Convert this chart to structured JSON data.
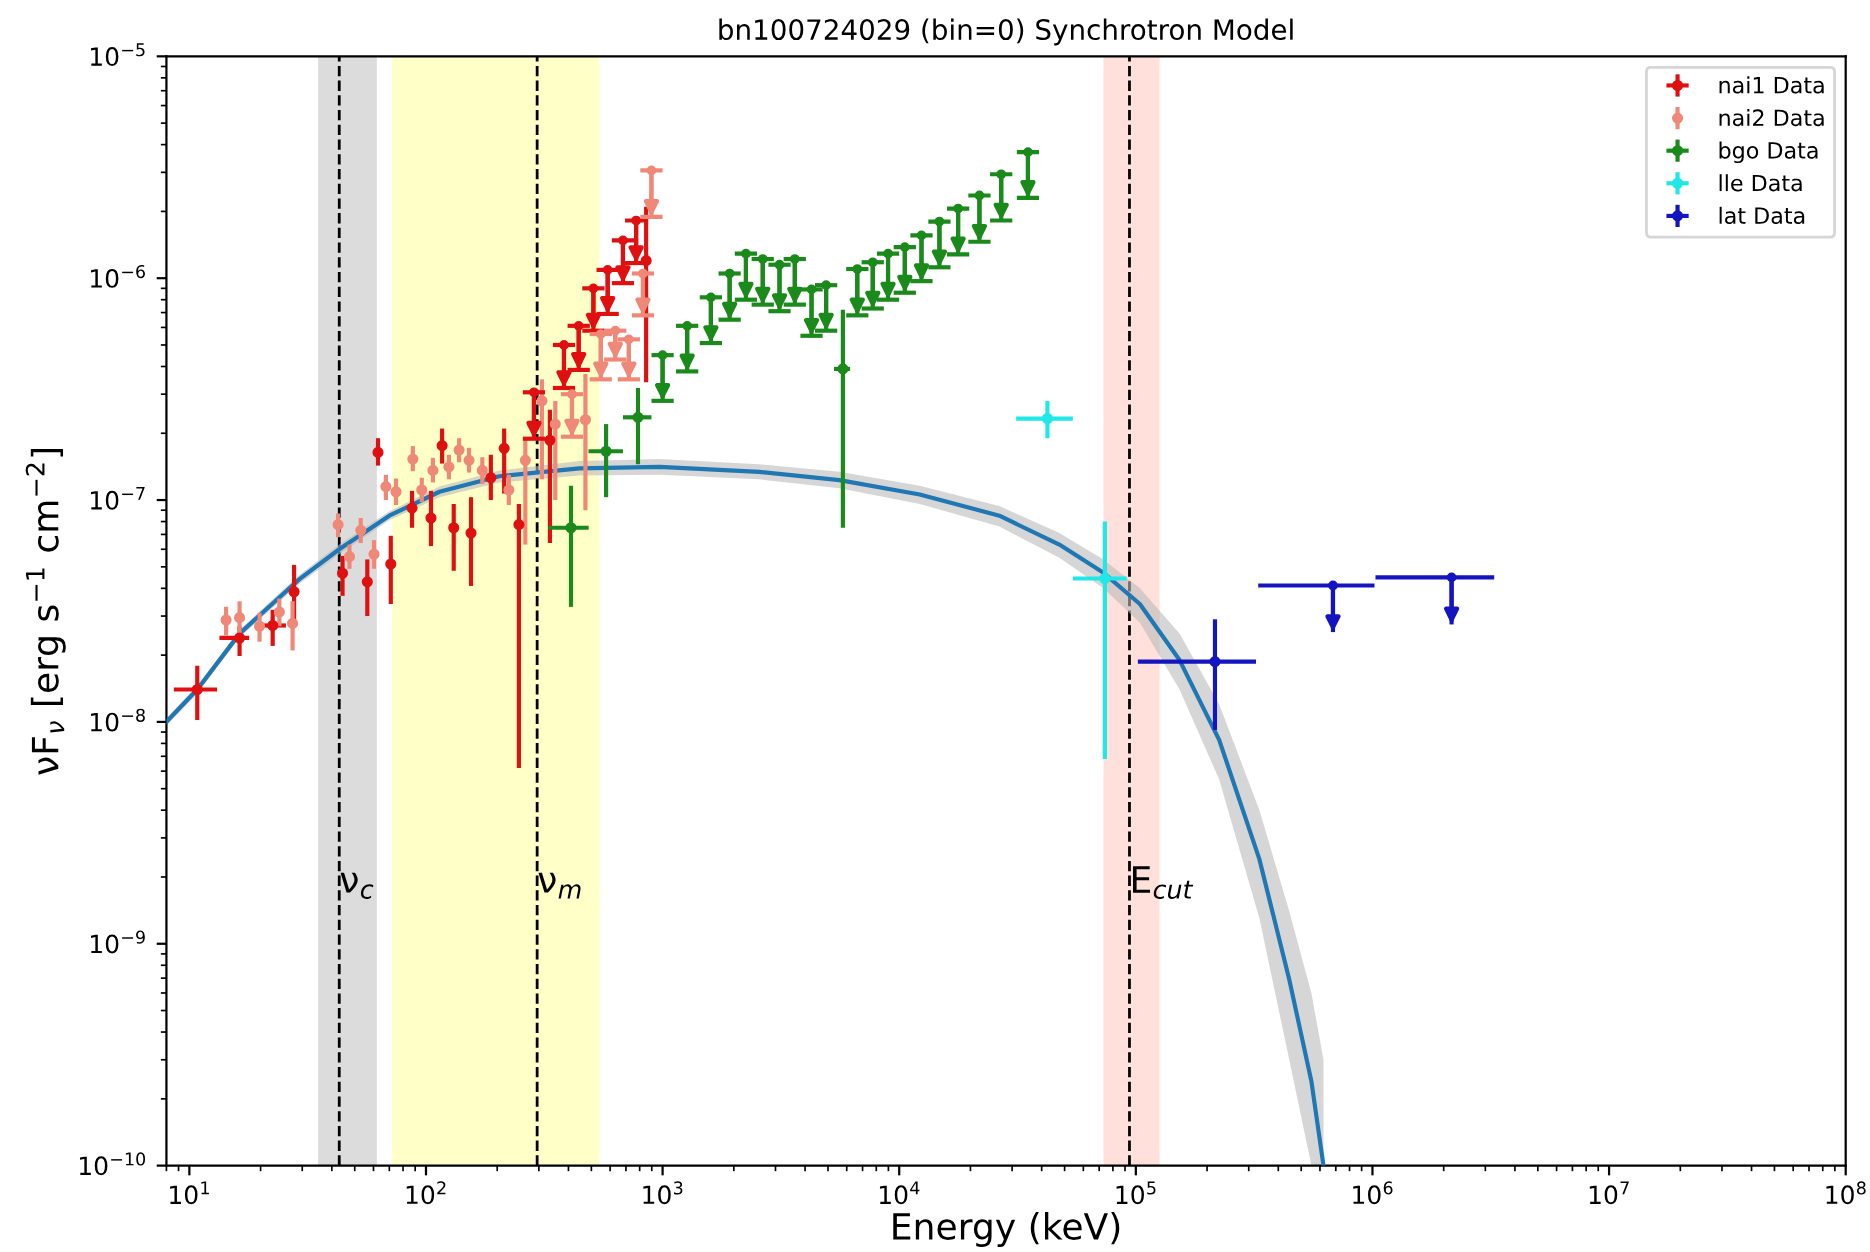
{
  "chart_data": {
    "type": "scatter",
    "title": "bn100724029 (bin=0) Synchrotron Model",
    "xlabel": "Energy (keV)",
    "ylabel": "νF$_{ν}$ [erg s$^{−1}$ cm$^{−2}$]",
    "log": "xy",
    "xlim": [
      8,
      100000000
    ],
    "ylim": [
      1e-10,
      1e-05
    ],
    "xticks": [
      {
        "value": 10,
        "label": "10$^{1}$"
      },
      {
        "value": 100,
        "label": "10$^{2}$"
      },
      {
        "value": 1000,
        "label": "10$^{3}$"
      },
      {
        "value": 10000,
        "label": "10$^{4}$"
      },
      {
        "value": 100000,
        "label": "10$^{5}$"
      },
      {
        "value": 1000000,
        "label": "10$^{6}$"
      },
      {
        "value": 10000000,
        "label": "10$^{7}$"
      },
      {
        "value": 100000000,
        "label": "10$^{8}$"
      }
    ],
    "yticks": [
      {
        "value": 1e-10,
        "label": "10$^{−10}$"
      },
      {
        "value": 1e-09,
        "label": "10$^{−9}$"
      },
      {
        "value": 1e-08,
        "label": "10$^{−8}$"
      },
      {
        "value": 1e-07,
        "label": "10$^{−7}$"
      },
      {
        "value": 1e-06,
        "label": "10$^{−6}$"
      },
      {
        "value": 1e-05,
        "label": "10$^{−5}$"
      }
    ],
    "grid": false,
    "legend": "top right",
    "marker": "circle",
    "bands": [
      {
        "axis": "x",
        "from": 35,
        "to": 62,
        "color": "#dcdcdc"
      },
      {
        "axis": "x",
        "from": 72,
        "to": 540,
        "color": "#ffffc8"
      },
      {
        "axis": "x",
        "from": 73000,
        "to": 126000,
        "color": "#ffe0da"
      }
    ],
    "ref_lines": [
      {
        "axis": "x",
        "value": 43,
        "label": "ν$_{c}$",
        "line_style": "dashed",
        "color": "#000000"
      },
      {
        "axis": "x",
        "value": 295,
        "label": "ν$_{m}$",
        "line_style": "dashed",
        "color": "#000000"
      },
      {
        "axis": "x",
        "value": 94000,
        "label": "E$_{cut}$",
        "line_style": "dashed",
        "color": "#000000"
      }
    ],
    "series": [
      {
        "type": "line",
        "marker": "none",
        "color": "#1f77b4",
        "x": [
          8,
          10.8,
          16.3,
          29.2,
          43,
          70,
          114,
          204,
          445,
          970,
          2560,
          5590,
          12200,
          26500,
          47500,
          73000,
          104000,
          153000,
          225000,
          333000,
          445000,
          552000,
          621000
        ],
        "values": [
          1e-08,
          1.4e-08,
          2.5e-08,
          4.4e-08,
          6e-08,
          8.5e-08,
          1.09e-07,
          1.28e-07,
          1.39e-07,
          1.41e-07,
          1.34e-07,
          1.23e-07,
          1.06e-07,
          8.5e-08,
          6.3e-08,
          4.7e-08,
          3.4e-08,
          1.9e-08,
          8.3e-09,
          2.4e-09,
          6.9e-10,
          2.4e-10,
          1e-10
        ],
        "lower": [
          9.6e-09,
          1.34e-08,
          2.4e-08,
          4.2e-08,
          5.7e-08,
          8.1e-08,
          1.03e-07,
          1.2e-07,
          1.29e-07,
          1.3e-07,
          1.24e-07,
          1.13e-07,
          9.6e-08,
          7.6e-08,
          5.5e-08,
          4e-08,
          2.8e-08,
          1.4e-08,
          5.5e-09,
          1.3e-09,
          3e-10,
          1e-10,
          1e-10
        ],
        "upper": [
          1.04e-08,
          1.46e-08,
          2.6e-08,
          4.6e-08,
          6.3e-08,
          8.9e-08,
          1.15e-07,
          1.36e-07,
          1.5e-07,
          1.53e-07,
          1.45e-07,
          1.34e-07,
          1.16e-07,
          9.4e-08,
          7.1e-08,
          5.4e-08,
          4e-08,
          2.5e-08,
          1.2e-08,
          4e-09,
          1.4e-09,
          6e-10,
          3e-10
        ]
      },
      {
        "name": "nai1 Data",
        "color": "#e01010",
        "x": [
          10.8,
          16.3,
          22.5,
          27.7,
          44.4,
          56.5,
          71,
          62.7,
          87.3,
          105,
          117,
          131,
          155,
          188,
          214,
          247,
          334,
          852
        ],
        "values": [
          1.4e-08,
          2.39e-08,
          2.72e-08,
          3.86e-08,
          4.68e-08,
          4.28e-08,
          5.15e-08,
          1.64e-07,
          9.2e-08,
          8.3e-08,
          1.76e-07,
          7.5e-08,
          7.1e-08,
          1.26e-07,
          1.71e-07,
          7.75e-08,
          1.86e-07,
          1.2e-06
        ],
        "errors": [
          [
            1.02e-08,
            1.79e-08
          ],
          [
            1.98e-08,
            2.7e-08
          ],
          [
            2.2e-08,
            3.2e-08
          ],
          [
            2.9e-08,
            5.1e-08
          ],
          [
            3.7e-08,
            5.6e-08
          ],
          [
            3e-08,
            5.4e-08
          ],
          [
            3.4e-08,
            6.9e-08
          ],
          [
            1.43e-07,
            1.9e-07
          ],
          [
            7.5e-08,
            1.1e-07
          ],
          [
            6.2e-08,
            1.1e-07
          ],
          [
            1.46e-07,
            2.1e-07
          ],
          [
            4.8e-08,
            9.6e-08
          ],
          [
            4.1e-08,
            1.03e-07
          ],
          [
            1e-07,
            1.6e-07
          ],
          [
            1.07e-07,
            2.1e-07
          ],
          [
            6.2e-09,
            9.6e-08
          ],
          [
            6.4e-08,
            2.55e-07
          ],
          [
            3.4e-07,
            2.1e-06
          ]
        ],
        "xerrors": [
          [
            8.6,
            13.1
          ],
          [
            13.4,
            17.9
          ],
          [
            19.8,
            25.6
          ],
          null,
          null,
          null,
          null,
          null,
          null,
          null,
          null,
          null,
          null,
          null,
          null,
          null,
          null,
          null
        ]
      },
      {
        "name": "nai2 Data",
        "color": "#f08878",
        "x": [
          14.3,
          16.3,
          19.8,
          24,
          27.3,
          42.5,
          47.5,
          53,
          60.3,
          67.7,
          74.7,
          88,
          96,
          107,
          125,
          138,
          152,
          173,
          224,
          263,
          309,
          352,
          472
        ],
        "values": [
          2.88e-08,
          2.95e-08,
          2.7e-08,
          3.13e-08,
          2.78e-08,
          7.75e-08,
          5.56e-08,
          7.3e-08,
          5.7e-08,
          1.15e-07,
          1.09e-07,
          1.53e-07,
          1.11e-07,
          1.36e-07,
          1.41e-07,
          1.68e-07,
          1.51e-07,
          1.36e-07,
          1.11e-07,
          1.51e-07,
          2.8e-07,
          2.2e-07,
          2.3e-07
        ],
        "errors": [
          [
            2.45e-08,
            3.3e-08
          ],
          [
            2.5e-08,
            3.5e-08
          ],
          [
            2.3e-08,
            3.1e-08
          ],
          [
            2.7e-08,
            3.6e-08
          ],
          [
            2.1e-08,
            3.5e-08
          ],
          [
            6.8e-08,
            8.7e-08
          ],
          [
            4.9e-08,
            6.3e-08
          ],
          [
            6.4e-08,
            8.3e-08
          ],
          [
            4.9e-08,
            6.6e-08
          ],
          [
            1e-07,
            1.3e-07
          ],
          [
            9.5e-08,
            1.25e-07
          ],
          [
            1.35e-07,
            1.75e-07
          ],
          [
            9.8e-08,
            1.26e-07
          ],
          [
            1.2e-07,
            1.55e-07
          ],
          [
            1.24e-07,
            1.6e-07
          ],
          [
            1.48e-07,
            1.9e-07
          ],
          [
            1.33e-07,
            1.72e-07
          ],
          [
            1.18e-07,
            1.56e-07
          ],
          [
            9.5e-08,
            1.3e-07
          ],
          [
            6.3e-08,
            1.9e-07
          ],
          [
            1.24e-07,
            3.5e-07
          ],
          [
            1e-07,
            2.8e-07
          ],
          [
            9e-08,
            3.7e-07
          ]
        ]
      },
      {
        "name": "bgo Data",
        "color": "#1a8a1a",
        "x": [
          410,
          577,
          787,
          5780
        ],
        "values": [
          7.5e-08,
          1.66e-07,
          2.36e-07,
          3.9e-07
        ],
        "errors": [
          [
            3.3e-08,
            1.16e-07
          ],
          [
            1.03e-07,
            2.2e-07
          ],
          [
            1.45e-07,
            3.2e-07
          ],
          [
            7.5e-08,
            7.2e-07
          ]
        ],
        "xerrors": [
          [
            330,
            487
          ],
          [
            486,
            680
          ],
          [
            680,
            897
          ],
          [
            5300,
            6200
          ]
        ]
      },
      {
        "name": "lle Data",
        "color": "#20e8e8",
        "x": [
          42300,
          74000
        ],
        "values": [
          2.33e-07,
          4.43e-08
        ],
        "errors": [
          [
            1.9e-07,
            2.8e-07
          ],
          [
            6.8e-09,
            8e-08
          ]
        ],
        "xerrors": [
          [
            31200,
            54200
          ],
          [
            54200,
            91500
          ]
        ]
      },
      {
        "name": "lat Data",
        "color": "#1414c0",
        "x": [
          216000
        ],
        "values": [
          1.87e-08
        ],
        "errors": [
          [
            9.2e-09,
            2.9e-08
          ]
        ],
        "xerrors": [
          [
            102000,
            322000
          ]
        ]
      },
      {
        "color": "#e01010",
        "marker": "triangle",
        "x": [
          286,
          383,
          442,
          510,
          586,
          680,
          773
        ],
        "values": [
          3.06e-07,
          5e-07,
          6.1e-07,
          9e-07,
          1.09e-06,
          1.48e-06,
          1.82e-06
        ],
        "errors": [
          [
            1.89e-07,
            3.06e-07
          ],
          [
            3.2e-07,
            5e-07
          ],
          [
            3.86e-07,
            6.1e-07
          ],
          [
            5.8e-07,
            9e-07
          ],
          [
            6.9e-07,
            1.09e-06
          ],
          [
            9.5e-07,
            1.48e-06
          ],
          [
            1.17e-06,
            1.82e-06
          ]
        ]
      },
      {
        "color": "#f08878",
        "marker": "triangle",
        "x": [
          414,
          548,
          631,
          720,
          826,
          897
        ],
        "values": [
          3e-07,
          5.6e-07,
          5.8e-07,
          5.3e-07,
          1.05e-06,
          3.06e-06
        ],
        "errors": [
          [
            1.93e-07,
            3e-07
          ],
          [
            3.5e-07,
            5.6e-07
          ],
          [
            4.3e-07,
            5.8e-07
          ],
          [
            3.5e-07,
            5.3e-07
          ],
          [
            6.8e-07,
            1.05e-06
          ],
          [
            1.89e-06,
            3.06e-06
          ]
        ]
      },
      {
        "color": "#1a8a1a",
        "marker": "triangle",
        "x": [
          1000,
          1270,
          1600,
          1920,
          2250,
          2650,
          3120,
          3620,
          4260,
          4910,
          6650,
          7730,
          8970,
          10560,
          12420,
          14790,
          17740,
          21830,
          26980,
          35000
        ],
        "values": [
          4.5e-07,
          6.1e-07,
          8.2e-07,
          1.05e-06,
          1.29e-06,
          1.22e-06,
          1.15e-06,
          1.22e-06,
          8.9e-07,
          9.3e-07,
          1.1e-06,
          1.18e-06,
          1.29e-06,
          1.38e-06,
          1.56e-06,
          1.8e-06,
          2.06e-06,
          2.36e-06,
          2.94e-06,
          3.7e-06
        ],
        "errors": [
          [
            2.8e-07,
            4.5e-07
          ],
          [
            3.8e-07,
            6.1e-07
          ],
          [
            5.1e-07,
            8.2e-07
          ],
          [
            6.5e-07,
            1.05e-06
          ],
          [
            8e-07,
            1.29e-06
          ],
          [
            7.6e-07,
            1.22e-06
          ],
          [
            7.1e-07,
            1.15e-06
          ],
          [
            7.6e-07,
            1.22e-06
          ],
          [
            5.5e-07,
            8.9e-07
          ],
          [
            5.8e-07,
            9.3e-07
          ],
          [
            6.8e-07,
            1.1e-06
          ],
          [
            7.3e-07,
            1.18e-06
          ],
          [
            8e-07,
            1.29e-06
          ],
          [
            8.6e-07,
            1.38e-06
          ],
          [
            9.7e-07,
            1.56e-06
          ],
          [
            1.12e-06,
            1.8e-06
          ],
          [
            1.28e-06,
            2.06e-06
          ],
          [
            1.46e-06,
            2.36e-06
          ],
          [
            1.82e-06,
            2.94e-06
          ],
          [
            2.3e-06,
            3.7e-06
          ]
        ]
      },
      {
        "color": "#1414c0",
        "marker": "triangle",
        "x": [
          681000,
          2160000
        ],
        "values": [
          4.12e-08,
          4.48e-08
        ],
        "errors": [
          [
            2.54e-08,
            4.12e-08
          ],
          [
            2.75e-08,
            4.48e-08
          ]
        ],
        "xerrors": [
          [
            329000,
            1020000
          ],
          [
            1030000,
            3270000
          ]
        ]
      }
    ]
  }
}
